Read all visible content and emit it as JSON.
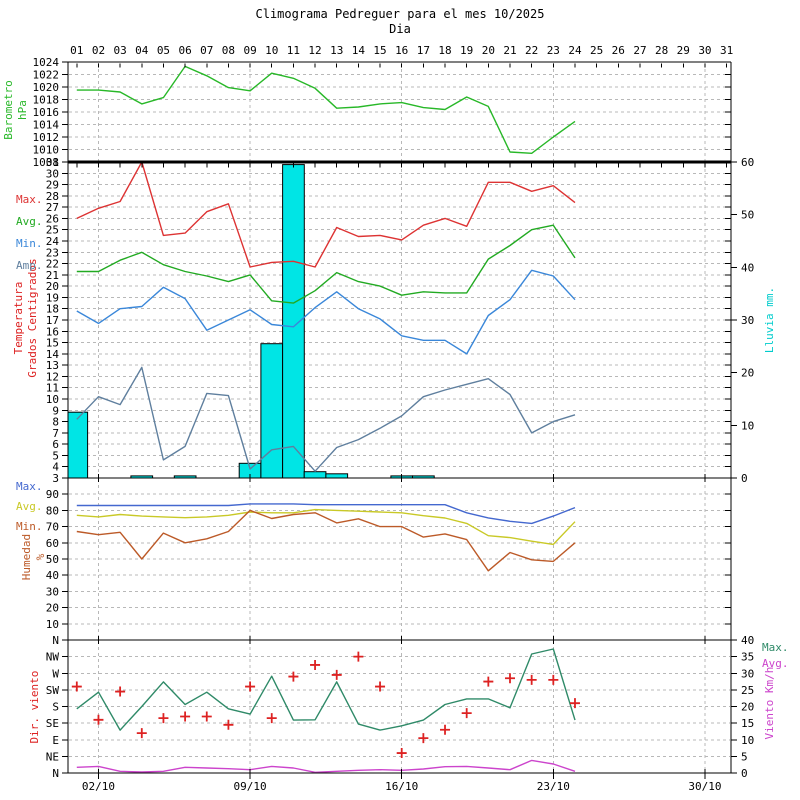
{
  "title": "Climograma Pedreguer para el mes 10/2025",
  "subtitle": "Dia",
  "chart_data": {
    "type": "line",
    "title": "Climograma Pedreguer para el mes 10/2025",
    "xlabel": "Dia",
    "x_axis": {
      "day_labels": [
        "01",
        "02",
        "03",
        "04",
        "05",
        "06",
        "07",
        "08",
        "09",
        "10",
        "11",
        "12",
        "13",
        "14",
        "15",
        "16",
        "17",
        "18",
        "19",
        "20",
        "21",
        "22",
        "23",
        "24",
        "25",
        "26",
        "27",
        "28",
        "29",
        "30",
        "31"
      ],
      "bottom_labels": [
        {
          "day": 2,
          "label": "02/10"
        },
        {
          "day": 9,
          "label": "09/10"
        },
        {
          "day": 16,
          "label": "16/10"
        },
        {
          "day": 23,
          "label": "23/10"
        },
        {
          "day": 30,
          "label": "30/10"
        }
      ],
      "gridline_days": [
        2,
        9,
        16,
        23,
        30
      ]
    },
    "days_with_data": [
      1,
      2,
      3,
      4,
      5,
      6,
      7,
      8,
      9,
      10,
      11,
      12,
      13,
      14,
      15,
      16,
      17,
      18,
      19,
      20,
      21,
      22,
      23,
      24
    ],
    "panels": [
      {
        "id": "barometro",
        "axis_label": {
          "lines": [
            "Barometro",
            "hPa"
          ],
          "color": "#28b828"
        },
        "ylim": [
          1008,
          1024
        ],
        "yticks": [
          1008,
          1010,
          1012,
          1014,
          1016,
          1018,
          1020,
          1022,
          1024
        ],
        "grid_values": [
          1010,
          1012,
          1014,
          1016,
          1018,
          1020,
          1022
        ],
        "series": [
          {
            "name": "presion-line",
            "color": "#28b828",
            "values": [
              1019.5,
              1019.5,
              1019.2,
              1017.3,
              1018.3,
              1023.3,
              1021.8,
              1019.9,
              1019.4,
              1022.2,
              1021.4,
              1019.8,
              1016.6,
              1016.8,
              1017.3,
              1017.5,
              1016.7,
              1016.4,
              1018.4,
              1016.9,
              1009.6,
              1009.4,
              1012.0,
              1014.5
            ]
          }
        ]
      },
      {
        "id": "temperatura",
        "axis_label": {
          "lines": [
            "Temperatura",
            "Grados Centigrados"
          ],
          "color": "#dd2222"
        },
        "ylim": [
          3,
          31
        ],
        "yticks": [
          3,
          4,
          5,
          6,
          7,
          8,
          9,
          10,
          11,
          12,
          13,
          14,
          15,
          16,
          17,
          18,
          19,
          20,
          21,
          22,
          23,
          24,
          25,
          26,
          27,
          28,
          29,
          30,
          31
        ],
        "grid_values": [
          4,
          5,
          6,
          7,
          8,
          9,
          10,
          11,
          12,
          13,
          14,
          15,
          16,
          17,
          18,
          19,
          20,
          21,
          22,
          23,
          24,
          25,
          26,
          27,
          28,
          29,
          30
        ],
        "legend": [
          {
            "label": "Max.",
            "color": "#dd3333"
          },
          {
            "label": "Avg.",
            "color": "#22aa22"
          },
          {
            "label": "Min.",
            "color": "#3a87d9"
          },
          {
            "label": "Amp.",
            "color": "#5f7f9e"
          }
        ],
        "right": {
          "label": "Lluvia mm.",
          "color": "#00cccc",
          "ylim": [
            0,
            60
          ],
          "yticks": [
            0,
            10,
            20,
            30,
            40,
            50,
            60
          ]
        },
        "bars": {
          "name": "lluvia",
          "color": "#00e5e5",
          "axis": "right",
          "values": [
            12.5,
            0,
            0,
            0.4,
            0,
            0.4,
            0,
            0,
            2.8,
            25.5,
            59.5,
            1.2,
            0.8,
            0,
            0,
            0.4,
            0.4,
            0,
            0,
            0,
            0,
            0,
            0,
            0
          ]
        },
        "series": [
          {
            "name": "temp-max-line",
            "color": "#dd3333",
            "values": [
              26.0,
              26.9,
              27.5,
              31.0,
              24.5,
              24.7,
              26.6,
              27.3,
              21.7,
              22.1,
              22.2,
              21.7,
              25.2,
              24.4,
              24.5,
              24.1,
              25.4,
              26.0,
              25.3,
              29.2,
              29.2,
              28.4,
              28.9,
              27.4
            ]
          },
          {
            "name": "temp-avg-line",
            "color": "#22aa22",
            "values": [
              21.3,
              21.3,
              22.3,
              23.0,
              21.9,
              21.3,
              20.9,
              20.4,
              21.0,
              18.7,
              18.5,
              19.6,
              21.2,
              20.4,
              20.0,
              19.2,
              19.5,
              19.4,
              19.4,
              22.4,
              23.6,
              25.0,
              25.4,
              22.5
            ]
          },
          {
            "name": "temp-min-line",
            "color": "#3a87d9",
            "values": [
              17.8,
              16.7,
              18.0,
              18.2,
              19.9,
              18.9,
              16.1,
              17.0,
              17.9,
              16.6,
              16.4,
              18.1,
              19.5,
              18.0,
              17.1,
              15.6,
              15.2,
              15.2,
              14.0,
              17.4,
              18.8,
              21.4,
              20.9,
              18.8
            ]
          },
          {
            "name": "temp-amp-line",
            "color": "#5f7f9e",
            "values": [
              8.2,
              10.2,
              9.5,
              12.8,
              4.6,
              5.8,
              10.5,
              10.3,
              3.8,
              5.5,
              5.8,
              3.6,
              5.7,
              6.4,
              7.4,
              8.5,
              10.2,
              10.8,
              11.3,
              11.8,
              10.4,
              7.0,
              8.0,
              8.6
            ]
          }
        ]
      },
      {
        "id": "humedad",
        "axis_label": {
          "lines": [
            "Humedad",
            "%"
          ],
          "color": "#bc5a28"
        },
        "ylim": [
          0,
          100
        ],
        "yticks": [
          10,
          20,
          30,
          40,
          50,
          60,
          70,
          80,
          90
        ],
        "grid_values": [
          10,
          20,
          30,
          40,
          50,
          60,
          70,
          80,
          90
        ],
        "legend": [
          {
            "label": "Max.",
            "color": "#4468cf"
          },
          {
            "label": "Avg.",
            "color": "#c9c927"
          },
          {
            "label": "Min.",
            "color": "#bc5a28"
          }
        ],
        "series": [
          {
            "name": "hum-max-line",
            "color": "#4468cf",
            "values": [
              83,
              83,
              83,
              83,
              83,
              83,
              83,
              83,
              84,
              84,
              84,
              83.5,
              83.5,
              83.5,
              83.5,
              83.5,
              83.5,
              83.5,
              78.5,
              75.4,
              73.3,
              72.0,
              76.5,
              81.7
            ]
          },
          {
            "name": "hum-avg-line",
            "color": "#c9c927",
            "values": [
              77,
              76,
              77.5,
              76.5,
              76,
              75.5,
              76,
              77,
              79,
              78.5,
              78.5,
              80.5,
              80,
              79.5,
              79,
              78.5,
              76.7,
              75.3,
              72,
              64.4,
              63.2,
              61,
              59,
              73
            ]
          },
          {
            "name": "hum-min-line",
            "color": "#bc5a28",
            "values": [
              67,
              65,
              66.5,
              50,
              66,
              60,
              62.5,
              67,
              80,
              75,
              77.5,
              78.5,
              72.3,
              74.8,
              70,
              70,
              63.5,
              65.5,
              62,
              42.7,
              54,
              49.5,
              48.5,
              60
            ]
          }
        ]
      },
      {
        "id": "viento",
        "axis_label": {
          "lines": [
            "Dir. viento"
          ],
          "color": "#dd2222"
        },
        "left_categories": [
          "N",
          "NW",
          "W",
          "SW",
          "S",
          "SE",
          "E",
          "NE",
          "N"
        ],
        "right": {
          "label": "Viento Km/h",
          "color": "#cc44cc",
          "ylim": [
            0,
            40
          ],
          "yticks": [
            0,
            5,
            10,
            15,
            20,
            25,
            30,
            35,
            40
          ]
        },
        "legend_right": [
          {
            "label": "Max.",
            "color": "#2f8a68"
          },
          {
            "label": "Avg.",
            "color": "#cc44cc"
          }
        ],
        "series": [
          {
            "name": "wind-max-line",
            "color": "#2f8a68",
            "axis": "right",
            "values": [
              19.3,
              24.3,
              12.9,
              20.0,
              27.4,
              20.6,
              24.3,
              19.3,
              17.7,
              29.1,
              15.9,
              16.0,
              27.4,
              14.7,
              12.9,
              14.2,
              15.9,
              20.6,
              22.3,
              22.3,
              19.6,
              35.8,
              37.3,
              15.9
            ]
          },
          {
            "name": "wind-avg-line",
            "color": "#cc44cc",
            "axis": "right",
            "values": [
              1.7,
              2.0,
              0.5,
              0.3,
              0.5,
              1.7,
              1.5,
              1.3,
              1.0,
              2.0,
              1.5,
              0.2,
              0.5,
              0.8,
              1.0,
              0.8,
              1.2,
              1.9,
              2.0,
              1.5,
              1.0,
              3.8,
              2.7,
              0.5
            ]
          },
          {
            "name": "wind-direction-markers",
            "color": "#dd2222",
            "type": "cross",
            "steps": [
              2.8,
              4.8,
              3.1,
              5.6,
              4.7,
              4.6,
              4.6,
              5.1,
              2.8,
              4.7,
              2.2,
              1.5,
              2.1,
              1.0,
              2.8,
              6.8,
              5.9,
              5.4,
              4.4,
              2.5,
              2.3,
              2.4,
              2.4,
              3.8
            ],
            "directions": [
              "SW",
              "SE",
              "SW",
              "E",
              "SE",
              "SE",
              "SE",
              "SE",
              "SW",
              "SE",
              "W",
              "W",
              "W",
              "NW",
              "SW",
              "NE",
              "E",
              "E",
              "S",
              "SW",
              "W",
              "W",
              "W",
              "S"
            ]
          }
        ]
      }
    ]
  }
}
